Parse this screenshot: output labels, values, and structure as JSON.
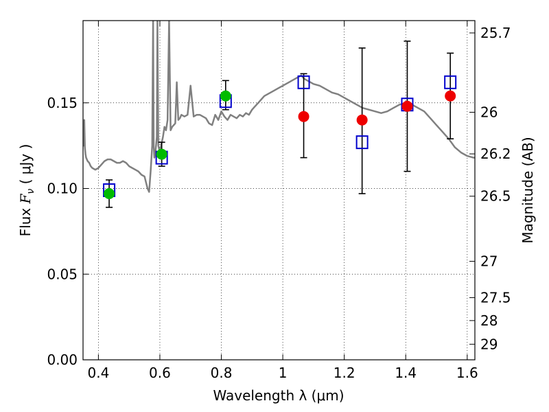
{
  "chart_data": {
    "type": "scatter",
    "xlabel": "Wavelength  λ (μm)",
    "ylabel_prefix": "Flux ",
    "ylabel_symbol": "F",
    "ylabel_sub": "ν",
    "ylabel_suffix": " ( μJy )",
    "y2label": "Magnitude (AB)",
    "xlim": [
      0.35,
      1.625
    ],
    "ylim": [
      0.0,
      0.198
    ],
    "grid": true,
    "x_ticks": [
      {
        "value": 0.4,
        "label": "0.4"
      },
      {
        "value": 0.6,
        "label": "0.6"
      },
      {
        "value": 0.8,
        "label": "0.8"
      },
      {
        "value": 1.0,
        "label": "1"
      },
      {
        "value": 1.2,
        "label": "1.2"
      },
      {
        "value": 1.4,
        "label": "1.4"
      },
      {
        "value": 1.6,
        "label": "1.6"
      }
    ],
    "y_ticks": [
      {
        "value": 0.0,
        "label": "0.00"
      },
      {
        "value": 0.05,
        "label": "0.05"
      },
      {
        "value": 0.1,
        "label": "0.10"
      },
      {
        "value": 0.15,
        "label": "0.15"
      }
    ],
    "y2_ticks": [
      {
        "flux": 0.1908,
        "label": "25.7"
      },
      {
        "flux": 0.1445,
        "label": "26"
      },
      {
        "flux": 0.1202,
        "label": "26.2"
      },
      {
        "flux": 0.0955,
        "label": "26.5"
      },
      {
        "flux": 0.0575,
        "label": "27"
      },
      {
        "flux": 0.0363,
        "label": "27.5"
      },
      {
        "flux": 0.0229,
        "label": "28"
      },
      {
        "flux": 0.0091,
        "label": "29"
      }
    ],
    "series": [
      {
        "name": "model_spectrum",
        "kind": "line",
        "color": "#808080",
        "x": [
          0.35,
          0.352,
          0.354,
          0.356,
          0.358,
          0.36,
          0.365,
          0.37,
          0.375,
          0.38,
          0.39,
          0.4,
          0.41,
          0.42,
          0.43,
          0.44,
          0.45,
          0.46,
          0.47,
          0.48,
          0.49,
          0.5,
          0.51,
          0.52,
          0.53,
          0.54,
          0.55,
          0.56,
          0.565,
          0.57,
          0.575,
          0.578,
          0.58,
          0.582,
          0.585,
          0.59,
          0.592,
          0.595,
          0.6,
          0.605,
          0.61,
          0.615,
          0.62,
          0.625,
          0.63,
          0.635,
          0.64,
          0.65,
          0.655,
          0.66,
          0.665,
          0.67,
          0.68,
          0.69,
          0.7,
          0.71,
          0.72,
          0.73,
          0.74,
          0.75,
          0.76,
          0.77,
          0.78,
          0.79,
          0.8,
          0.81,
          0.82,
          0.83,
          0.84,
          0.85,
          0.86,
          0.87,
          0.88,
          0.89,
          0.9,
          0.91,
          0.92,
          0.93,
          0.94,
          0.95,
          0.96,
          0.97,
          0.98,
          0.99,
          1.0,
          1.01,
          1.02,
          1.03,
          1.04,
          1.05,
          1.06,
          1.07,
          1.08,
          1.09,
          1.1,
          1.12,
          1.14,
          1.16,
          1.18,
          1.2,
          1.22,
          1.24,
          1.26,
          1.28,
          1.3,
          1.32,
          1.34,
          1.36,
          1.38,
          1.4,
          1.42,
          1.44,
          1.46,
          1.48,
          1.5,
          1.52,
          1.54,
          1.56,
          1.58,
          1.6,
          1.62,
          1.625
        ],
        "y": [
          0.126,
          0.125,
          0.14,
          0.124,
          0.12,
          0.118,
          0.116,
          0.115,
          0.113,
          0.112,
          0.111,
          0.112,
          0.114,
          0.116,
          0.117,
          0.117,
          0.116,
          0.115,
          0.115,
          0.116,
          0.115,
          0.113,
          0.112,
          0.111,
          0.11,
          0.108,
          0.107,
          0.1,
          0.098,
          0.11,
          0.125,
          0.198,
          0.125,
          0.118,
          0.12,
          0.13,
          0.198,
          0.125,
          0.121,
          0.126,
          0.13,
          0.136,
          0.134,
          0.14,
          0.198,
          0.134,
          0.136,
          0.138,
          0.162,
          0.14,
          0.141,
          0.143,
          0.142,
          0.143,
          0.16,
          0.142,
          0.143,
          0.143,
          0.142,
          0.141,
          0.138,
          0.137,
          0.143,
          0.14,
          0.145,
          0.142,
          0.14,
          0.143,
          0.142,
          0.141,
          0.143,
          0.142,
          0.144,
          0.143,
          0.146,
          0.148,
          0.15,
          0.152,
          0.154,
          0.155,
          0.156,
          0.157,
          0.158,
          0.159,
          0.16,
          0.161,
          0.162,
          0.163,
          0.164,
          0.165,
          0.166,
          0.164,
          0.163,
          0.162,
          0.161,
          0.16,
          0.158,
          0.156,
          0.155,
          0.153,
          0.151,
          0.149,
          0.147,
          0.146,
          0.145,
          0.144,
          0.145,
          0.147,
          0.149,
          0.15,
          0.149,
          0.147,
          0.145,
          0.141,
          0.137,
          0.133,
          0.129,
          0.124,
          0.121,
          0.119,
          0.118,
          0.118
        ]
      },
      {
        "name": "model_bands",
        "kind": "open_square",
        "color": "#0000cc",
        "x": [
          0.435,
          0.606,
          0.814,
          1.068,
          1.258,
          1.405,
          1.545
        ],
        "y": [
          0.099,
          0.118,
          0.151,
          0.162,
          0.127,
          0.149,
          0.162
        ]
      },
      {
        "name": "observed_detections",
        "kind": "filled_circle",
        "color": "#00bb00",
        "x": [
          0.435,
          0.606,
          0.814
        ],
        "y": [
          0.097,
          0.12,
          0.154
        ],
        "yerr_low": [
          0.089,
          0.113,
          0.146
        ],
        "yerr_high": [
          0.105,
          0.127,
          0.163
        ]
      },
      {
        "name": "observed_nir",
        "kind": "filled_circle",
        "color": "#ee0000",
        "x": [
          1.068,
          1.258,
          1.405,
          1.545
        ],
        "y": [
          0.142,
          0.14,
          0.148,
          0.154
        ],
        "yerr_low": [
          0.118,
          0.097,
          0.11,
          0.129
        ],
        "yerr_high": [
          0.167,
          0.182,
          0.186,
          0.179
        ]
      }
    ],
    "annotations": [
      {
        "x": 0.575,
        "y": 0.198,
        "note": "emission line clipped"
      },
      {
        "x": 0.595,
        "y": 0.198,
        "note": "emission line clipped"
      },
      {
        "x": 0.63,
        "y": 0.198,
        "note": "emission line clipped"
      }
    ]
  }
}
